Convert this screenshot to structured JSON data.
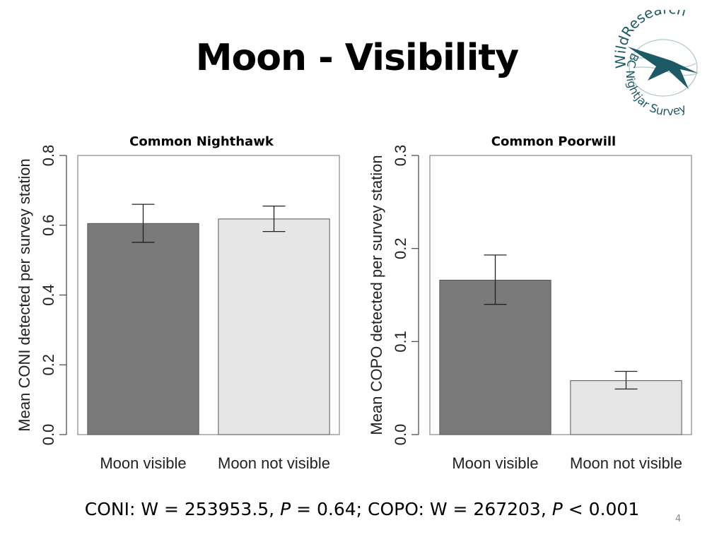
{
  "slide": {
    "title": "Moon - Visibility",
    "page_number": "4"
  },
  "logo": {
    "icon": "bird-circle-logo-icon",
    "arc_top": "WildResearch",
    "arc_middle": "BC Nightjar Survey",
    "colors": {
      "primary": "#1d5a66"
    }
  },
  "stats": {
    "prefix": "CONI: W = 253953.5, ",
    "p1_symbol": "P",
    "p1_rest": " = 0.64; COPO: W = 267203, ",
    "p2_symbol": "P",
    "p2_rest": " < 0.001"
  },
  "colors": {
    "visible_bar": "#7a7a7a",
    "not_visible_bar": "#e6e6e6"
  },
  "chart_data": [
    {
      "type": "bar",
      "title": "Common Nighthawk",
      "ylabel": "Mean CONI detected per survey station",
      "xlabel": "",
      "categories": [
        "Moon visible",
        "Moon not visible"
      ],
      "values": [
        0.605,
        0.618
      ],
      "error_low": [
        0.551,
        0.582
      ],
      "error_high": [
        0.66,
        0.655
      ],
      "ylim": [
        0,
        0.8
      ],
      "yticks": [
        "0.0",
        "0.2",
        "0.4",
        "0.6",
        "0.8"
      ],
      "grid": false
    },
    {
      "type": "bar",
      "title": "Common Poorwill",
      "ylabel": "Mean COPO detected per survey station",
      "xlabel": "",
      "categories": [
        "Moon visible",
        "Moon not visible"
      ],
      "values": [
        0.166,
        0.058
      ],
      "error_low": [
        0.14,
        0.049
      ],
      "error_high": [
        0.193,
        0.068
      ],
      "ylim": [
        0,
        0.3
      ],
      "yticks": [
        "0.0",
        "0.1",
        "0.2",
        "0.3"
      ],
      "grid": false
    }
  ]
}
